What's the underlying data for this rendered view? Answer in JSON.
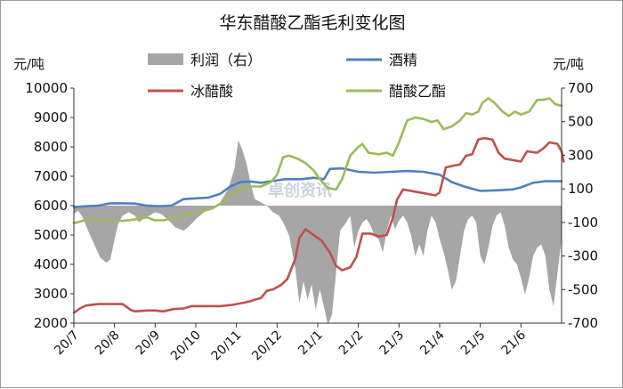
{
  "chart_data": {
    "type": "line",
    "title": "华东醋酸乙酯毛利变化图",
    "left_unit": "元/吨",
    "right_unit": "元/吨",
    "watermark": "卓创资讯",
    "left_axis": {
      "min": 2000,
      "max": 10000,
      "ticks": [
        "2000",
        "3000",
        "4000",
        "5000",
        "6000",
        "7000",
        "8000",
        "9000",
        "10000"
      ]
    },
    "right_axis": {
      "min": -700,
      "max": 700,
      "ticks": [
        "-700",
        "-500",
        "-300",
        "-100",
        "100",
        "300",
        "500",
        "700"
      ]
    },
    "x_range": [
      0,
      12
    ],
    "x_ticks": [
      {
        "label": "20/7",
        "x": 0
      },
      {
        "label": "20/8",
        "x": 1
      },
      {
        "label": "20/9",
        "x": 2
      },
      {
        "label": "20/10",
        "x": 3
      },
      {
        "label": "20/11",
        "x": 4
      },
      {
        "label": "20/12",
        "x": 5
      },
      {
        "label": "21/1",
        "x": 6
      },
      {
        "label": "21/2",
        "x": 7
      },
      {
        "label": "21/3",
        "x": 8
      },
      {
        "label": "21/4",
        "x": 9
      },
      {
        "label": "21/5",
        "x": 10
      },
      {
        "label": "21/6",
        "x": 11
      }
    ],
    "legend": [
      {
        "key": "profit",
        "label": "利润（右）"
      },
      {
        "key": "ethanol",
        "label": "酒精"
      },
      {
        "key": "acetic",
        "label": "冰醋酸"
      },
      {
        "key": "ethyl_acetate",
        "label": "醋酸乙酯"
      }
    ],
    "colors": {
      "profit": "#a6a6a6",
      "ethanol": "#4f81bd",
      "acetic": "#c0504d",
      "ethyl_acetate": "#9bbb59"
    },
    "series": [
      {
        "key": "ethanol",
        "name": "酒精",
        "axis": "left",
        "points": [
          [
            0,
            5950
          ],
          [
            0.3,
            5980
          ],
          [
            0.6,
            6000
          ],
          [
            0.9,
            6080
          ],
          [
            1.2,
            6080
          ],
          [
            1.5,
            6070
          ],
          [
            1.8,
            6000
          ],
          [
            2.1,
            5980
          ],
          [
            2.4,
            6000
          ],
          [
            2.7,
            6220
          ],
          [
            3.0,
            6250
          ],
          [
            3.3,
            6270
          ],
          [
            3.6,
            6400
          ],
          [
            3.85,
            6650
          ],
          [
            4.1,
            6800
          ],
          [
            4.35,
            6820
          ],
          [
            4.6,
            6780
          ],
          [
            4.85,
            6830
          ],
          [
            5.2,
            6900
          ],
          [
            5.6,
            6900
          ],
          [
            5.9,
            6950
          ],
          [
            6.15,
            6900
          ],
          [
            6.3,
            7250
          ],
          [
            6.6,
            7270
          ],
          [
            7.0,
            7150
          ],
          [
            7.4,
            7120
          ],
          [
            7.8,
            7150
          ],
          [
            8.2,
            7180
          ],
          [
            8.6,
            7150
          ],
          [
            9.0,
            7050
          ],
          [
            9.3,
            6800
          ],
          [
            9.6,
            6650
          ],
          [
            10.0,
            6500
          ],
          [
            10.4,
            6520
          ],
          [
            10.8,
            6550
          ],
          [
            11.0,
            6620
          ],
          [
            11.3,
            6780
          ],
          [
            11.6,
            6830
          ],
          [
            12.0,
            6830
          ]
        ]
      },
      {
        "key": "acetic",
        "name": "冰醋酸",
        "axis": "left",
        "points": [
          [
            0,
            2350
          ],
          [
            0.15,
            2500
          ],
          [
            0.3,
            2600
          ],
          [
            0.6,
            2650
          ],
          [
            1.0,
            2650
          ],
          [
            1.2,
            2650
          ],
          [
            1.3,
            2550
          ],
          [
            1.4,
            2450
          ],
          [
            1.5,
            2400
          ],
          [
            1.8,
            2430
          ],
          [
            2.0,
            2430
          ],
          [
            2.2,
            2400
          ],
          [
            2.45,
            2480
          ],
          [
            2.7,
            2500
          ],
          [
            2.9,
            2580
          ],
          [
            3.2,
            2580
          ],
          [
            3.6,
            2580
          ],
          [
            3.9,
            2620
          ],
          [
            4.2,
            2700
          ],
          [
            4.35,
            2750
          ],
          [
            4.45,
            2800
          ],
          [
            4.6,
            2850
          ],
          [
            4.75,
            3100
          ],
          [
            4.9,
            3150
          ],
          [
            5.1,
            3300
          ],
          [
            5.25,
            3500
          ],
          [
            5.45,
            4200
          ],
          [
            5.55,
            4900
          ],
          [
            5.7,
            5200
          ],
          [
            5.9,
            5000
          ],
          [
            6.1,
            4800
          ],
          [
            6.3,
            4400
          ],
          [
            6.45,
            3950
          ],
          [
            6.6,
            3800
          ],
          [
            6.8,
            3900
          ],
          [
            6.95,
            4250
          ],
          [
            7.1,
            5050
          ],
          [
            7.3,
            5050
          ],
          [
            7.5,
            4950
          ],
          [
            7.7,
            5000
          ],
          [
            7.85,
            5600
          ],
          [
            7.95,
            6200
          ],
          [
            8.1,
            6550
          ],
          [
            8.3,
            6500
          ],
          [
            8.5,
            6450
          ],
          [
            8.7,
            6400
          ],
          [
            8.9,
            6350
          ],
          [
            9.0,
            6450
          ],
          [
            9.15,
            7300
          ],
          [
            9.3,
            7350
          ],
          [
            9.5,
            7400
          ],
          [
            9.65,
            7700
          ],
          [
            9.8,
            7750
          ],
          [
            9.95,
            8250
          ],
          [
            10.1,
            8300
          ],
          [
            10.3,
            8250
          ],
          [
            10.45,
            7800
          ],
          [
            10.6,
            7600
          ],
          [
            10.8,
            7550
          ],
          [
            11.0,
            7500
          ],
          [
            11.15,
            7850
          ],
          [
            11.4,
            7800
          ],
          [
            11.55,
            7950
          ],
          [
            11.7,
            8150
          ],
          [
            11.9,
            8100
          ],
          [
            12.0,
            7850
          ],
          [
            12.05,
            7500
          ]
        ]
      },
      {
        "key": "ethyl_acetate",
        "name": "醋酸乙酯",
        "axis": "left",
        "points": [
          [
            0,
            5400
          ],
          [
            0.4,
            5550
          ],
          [
            0.8,
            5500
          ],
          [
            1.2,
            5480
          ],
          [
            1.6,
            5550
          ],
          [
            1.8,
            5600
          ],
          [
            2.0,
            5500
          ],
          [
            2.2,
            5500
          ],
          [
            2.5,
            5600
          ],
          [
            2.8,
            5700
          ],
          [
            3.1,
            5800
          ],
          [
            3.4,
            5900
          ],
          [
            3.7,
            6150
          ],
          [
            4.0,
            6500
          ],
          [
            4.3,
            6650
          ],
          [
            4.6,
            6650
          ],
          [
            4.85,
            6800
          ],
          [
            5.0,
            7050
          ],
          [
            5.15,
            7650
          ],
          [
            5.3,
            7700
          ],
          [
            5.5,
            7600
          ],
          [
            5.7,
            7450
          ],
          [
            5.9,
            7200
          ],
          [
            6.05,
            6900
          ],
          [
            6.25,
            6600
          ],
          [
            6.45,
            6550
          ],
          [
            6.6,
            6900
          ],
          [
            6.8,
            7700
          ],
          [
            7.0,
            8000
          ],
          [
            7.1,
            8100
          ],
          [
            7.25,
            7800
          ],
          [
            7.5,
            7750
          ],
          [
            7.7,
            7800
          ],
          [
            7.85,
            7700
          ],
          [
            8.0,
            8150
          ],
          [
            8.2,
            8900
          ],
          [
            8.4,
            9000
          ],
          [
            8.6,
            8950
          ],
          [
            8.8,
            8850
          ],
          [
            8.95,
            8900
          ],
          [
            9.1,
            8600
          ],
          [
            9.3,
            8700
          ],
          [
            9.5,
            8900
          ],
          [
            9.65,
            9150
          ],
          [
            9.8,
            9100
          ],
          [
            9.95,
            9200
          ],
          [
            10.05,
            9500
          ],
          [
            10.2,
            9650
          ],
          [
            10.35,
            9500
          ],
          [
            10.55,
            9200
          ],
          [
            10.7,
            9050
          ],
          [
            10.85,
            9200
          ],
          [
            11.0,
            9100
          ],
          [
            11.2,
            9200
          ],
          [
            11.4,
            9600
          ],
          [
            11.55,
            9600
          ],
          [
            11.7,
            9650
          ],
          [
            11.85,
            9450
          ],
          [
            12.0,
            9400
          ]
        ]
      },
      {
        "key": "profit",
        "name": "利润（右）",
        "axis": "right",
        "style": "area",
        "points": [
          [
            0,
            -50
          ],
          [
            0.1,
            -30
          ],
          [
            0.2,
            -60
          ],
          [
            0.35,
            -150
          ],
          [
            0.5,
            -230
          ],
          [
            0.65,
            -310
          ],
          [
            0.8,
            -340
          ],
          [
            0.9,
            -320
          ],
          [
            1.0,
            -200
          ],
          [
            1.1,
            -100
          ],
          [
            1.2,
            -60
          ],
          [
            1.35,
            -40
          ],
          [
            1.5,
            -60
          ],
          [
            1.6,
            -100
          ],
          [
            1.7,
            -80
          ],
          [
            1.85,
            -60
          ],
          [
            2.0,
            -40
          ],
          [
            2.15,
            -50
          ],
          [
            2.3,
            -80
          ],
          [
            2.5,
            -130
          ],
          [
            2.7,
            -150
          ],
          [
            2.85,
            -120
          ],
          [
            3.0,
            -80
          ],
          [
            3.2,
            -40
          ],
          [
            3.4,
            -20
          ],
          [
            3.6,
            20
          ],
          [
            3.8,
            100
          ],
          [
            3.95,
            220
          ],
          [
            4.05,
            390
          ],
          [
            4.15,
            330
          ],
          [
            4.25,
            250
          ],
          [
            4.35,
            130
          ],
          [
            4.45,
            40
          ],
          [
            4.6,
            20
          ],
          [
            4.75,
            0
          ],
          [
            4.9,
            -40
          ],
          [
            5.05,
            -60
          ],
          [
            5.15,
            -100
          ],
          [
            5.3,
            -180
          ],
          [
            5.45,
            -380
          ],
          [
            5.55,
            -580
          ],
          [
            5.65,
            -450
          ],
          [
            5.75,
            -560
          ],
          [
            5.85,
            -470
          ],
          [
            5.95,
            -620
          ],
          [
            6.05,
            -500
          ],
          [
            6.15,
            -600
          ],
          [
            6.25,
            -710
          ],
          [
            6.35,
            -650
          ],
          [
            6.45,
            -400
          ],
          [
            6.55,
            -150
          ],
          [
            6.7,
            -100
          ],
          [
            6.8,
            -60
          ],
          [
            6.9,
            -250
          ],
          [
            7.0,
            -150
          ],
          [
            7.1,
            -100
          ],
          [
            7.2,
            -80
          ],
          [
            7.3,
            -120
          ],
          [
            7.4,
            -180
          ],
          [
            7.5,
            -200
          ],
          [
            7.6,
            -280
          ],
          [
            7.7,
            -150
          ],
          [
            7.8,
            -60
          ],
          [
            7.9,
            -140
          ],
          [
            8.0,
            -90
          ],
          [
            8.1,
            -60
          ],
          [
            8.2,
            -100
          ],
          [
            8.3,
            -180
          ],
          [
            8.4,
            -300
          ],
          [
            8.5,
            -230
          ],
          [
            8.6,
            -300
          ],
          [
            8.7,
            -150
          ],
          [
            8.8,
            -60
          ],
          [
            8.9,
            -100
          ],
          [
            9.0,
            -200
          ],
          [
            9.1,
            -280
          ],
          [
            9.2,
            -380
          ],
          [
            9.3,
            -500
          ],
          [
            9.4,
            -450
          ],
          [
            9.5,
            -300
          ],
          [
            9.6,
            -150
          ],
          [
            9.7,
            -80
          ],
          [
            9.8,
            -60
          ],
          [
            9.9,
            -100
          ],
          [
            10.0,
            -300
          ],
          [
            10.1,
            -350
          ],
          [
            10.2,
            -250
          ],
          [
            10.3,
            -120
          ],
          [
            10.4,
            -60
          ],
          [
            10.5,
            -40
          ],
          [
            10.6,
            -120
          ],
          [
            10.7,
            -250
          ],
          [
            10.8,
            -320
          ],
          [
            10.9,
            -350
          ],
          [
            11.0,
            -430
          ],
          [
            11.1,
            -530
          ],
          [
            11.2,
            -430
          ],
          [
            11.3,
            -300
          ],
          [
            11.4,
            -250
          ],
          [
            11.5,
            -230
          ],
          [
            11.6,
            -300
          ],
          [
            11.7,
            -500
          ],
          [
            11.8,
            -600
          ],
          [
            11.9,
            -400
          ],
          [
            12.0,
            -200
          ]
        ]
      }
    ]
  }
}
